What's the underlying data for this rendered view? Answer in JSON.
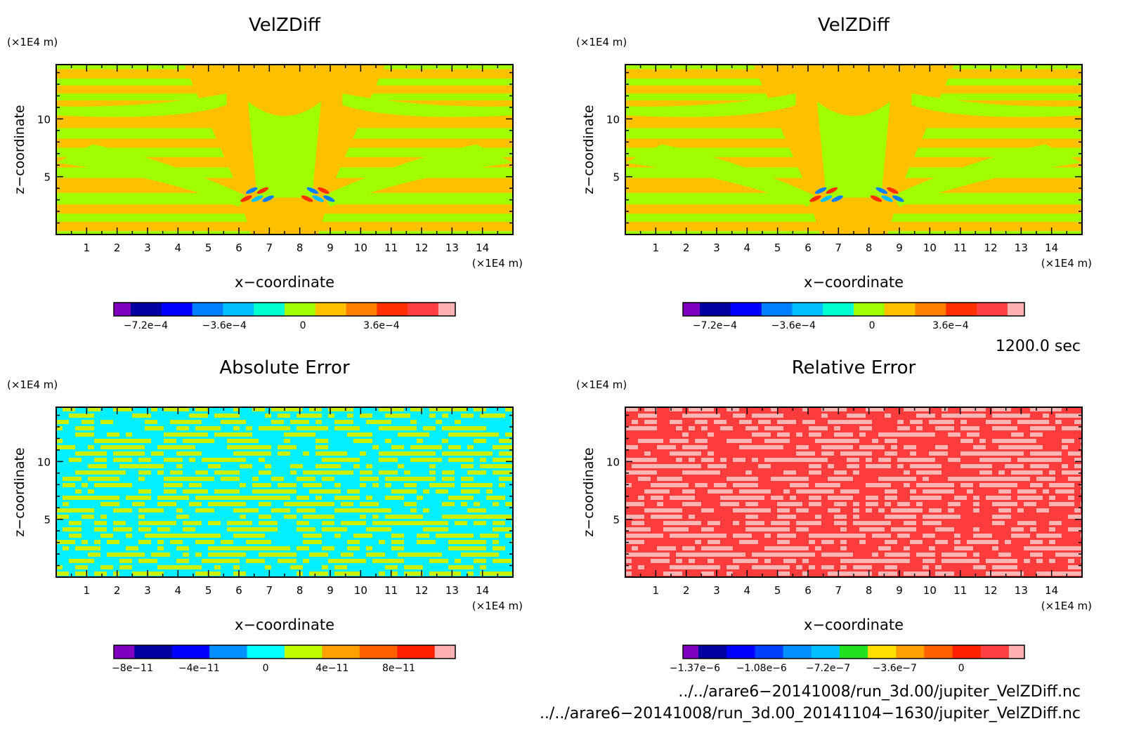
{
  "chart_data": [
    {
      "type": "heatmap",
      "title": "VelZDiff",
      "xlabel": "x−coordinate",
      "ylabel": "z−coordinate",
      "x_unit": "(×1E4 m)",
      "y_unit": "(×1E4 m)",
      "xlim": [
        0,
        15
      ],
      "ylim": [
        0,
        14.7
      ],
      "x_ticks": [
        "1",
        "2",
        "3",
        "4",
        "5",
        "6",
        "7",
        "8",
        "9",
        "10",
        "11",
        "12",
        "13",
        "14"
      ],
      "y_ticks": [
        "5",
        "10"
      ],
      "pattern": "velocity",
      "colorbar": {
        "colors": [
          "#8000c0",
          "#0000a0",
          "#0000ff",
          "#0080ff",
          "#00c0ff",
          "#00ffd0",
          "#a0ff00",
          "#ffc000",
          "#ff8000",
          "#ff3000",
          "#ff4040",
          "#ffb0b0"
        ],
        "tick_labels": [
          "−7.2e−4",
          "−3.6e−4",
          "0",
          "3.6e−4"
        ]
      },
      "field_colors": [
        "#a0ff00",
        "#ffc000"
      ],
      "accent_colors": [
        "#ff3000",
        "#0080ff",
        "#00c0ff"
      ]
    },
    {
      "type": "heatmap",
      "title": "VelZDiff",
      "xlabel": "x−coordinate",
      "ylabel": "z−coordinate",
      "x_unit": "(×1E4 m)",
      "y_unit": "(×1E4 m)",
      "xlim": [
        0,
        15
      ],
      "ylim": [
        0,
        14.7
      ],
      "x_ticks": [
        "1",
        "2",
        "3",
        "4",
        "5",
        "6",
        "7",
        "8",
        "9",
        "10",
        "11",
        "12",
        "13",
        "14"
      ],
      "y_ticks": [
        "5",
        "10"
      ],
      "pattern": "velocity",
      "colorbar": {
        "colors": [
          "#8000c0",
          "#0000a0",
          "#0000ff",
          "#0080ff",
          "#00c0ff",
          "#00ffd0",
          "#a0ff00",
          "#ffc000",
          "#ff8000",
          "#ff3000",
          "#ff4040",
          "#ffb0b0"
        ],
        "tick_labels": [
          "−7.2e−4",
          "−3.6e−4",
          "0",
          "3.6e−4"
        ]
      },
      "field_colors": [
        "#a0ff00",
        "#ffc000"
      ],
      "accent_colors": [
        "#ff3000",
        "#0080ff",
        "#00c0ff"
      ]
    },
    {
      "type": "heatmap",
      "title": "Absolute Error",
      "xlabel": "x−coordinate",
      "ylabel": "z−coordinate",
      "x_unit": "(×1E4 m)",
      "y_unit": "(×1E4 m)",
      "xlim": [
        0,
        15
      ],
      "ylim": [
        0,
        14.7
      ],
      "x_ticks": [
        "1",
        "2",
        "3",
        "4",
        "5",
        "6",
        "7",
        "8",
        "9",
        "10",
        "11",
        "12",
        "13",
        "14"
      ],
      "y_ticks": [
        "5",
        "10"
      ],
      "pattern": "noise",
      "colorbar": {
        "colors": [
          "#8000c0",
          "#0000a0",
          "#0000ff",
          "#0090ff",
          "#00ffff",
          "#c0ff00",
          "#ffa000",
          "#ff6000",
          "#ff2000",
          "#ffb0b0"
        ],
        "tick_labels": [
          "−8e−11",
          "−4e−11",
          "0",
          "4e−11",
          "8e−11"
        ]
      },
      "field_colors": [
        "#00f0ff",
        "#c8f000"
      ]
    },
    {
      "type": "heatmap",
      "title": "Relative Error",
      "xlabel": "x−coordinate",
      "ylabel": "z−coordinate",
      "x_unit": "(×1E4 m)",
      "y_unit": "(×1E4 m)",
      "xlim": [
        0,
        15
      ],
      "ylim": [
        0,
        14.7
      ],
      "x_ticks": [
        "1",
        "2",
        "3",
        "4",
        "5",
        "6",
        "7",
        "8",
        "9",
        "10",
        "11",
        "12",
        "13",
        "14"
      ],
      "y_ticks": [
        "5",
        "10"
      ],
      "pattern": "noise",
      "colorbar": {
        "colors": [
          "#8000c0",
          "#0000a0",
          "#0000ff",
          "#0040ff",
          "#0090ff",
          "#00c0ff",
          "#20e020",
          "#ffe000",
          "#ffa000",
          "#ff6000",
          "#ff2000",
          "#ff4040",
          "#ffb0b0"
        ],
        "tick_labels": [
          "−1.37e−6",
          "−1.08e−6",
          "−7.2e−7",
          "−3.6e−7",
          "0"
        ]
      },
      "field_colors": [
        "#ff3c3c",
        "#ffb4b4"
      ]
    }
  ],
  "time_label": "1200.0 sec",
  "footer": {
    "file1": "../../arare6−20141008/run_3d.00/jupiter_VelZDiff.nc",
    "file2": "../../arare6−20141008/run_3d.00_20141104−1630/jupiter_VelZDiff.nc"
  }
}
